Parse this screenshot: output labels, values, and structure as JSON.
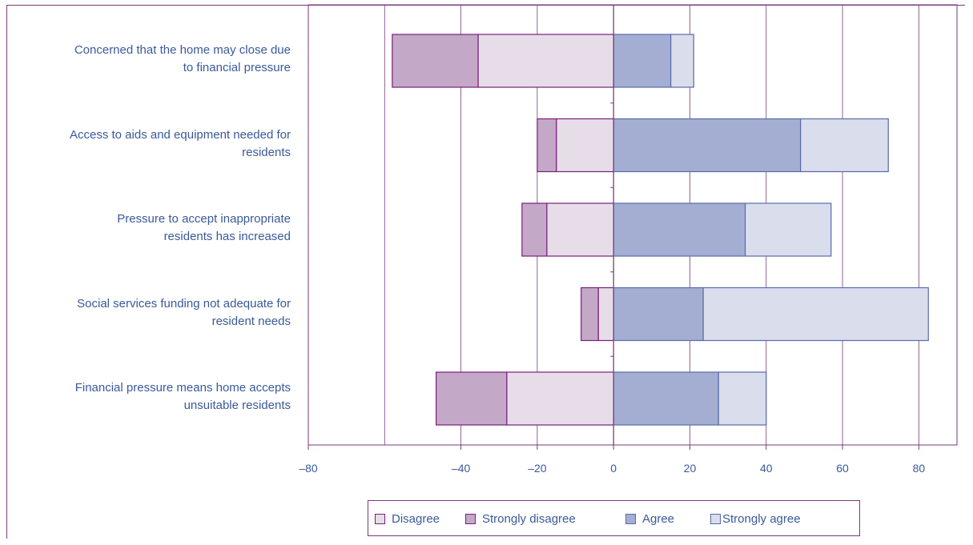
{
  "chart_data": {
    "type": "bar",
    "orientation": "horizontal",
    "stacked": "diverging",
    "categories": [
      "Concerned that the home may close due to financial pressure",
      "Access to aids and equipment needed for residents",
      "Pressure to accept inappropriate residents has increased",
      "Social services funding not adequate for resident needs",
      "Financial pressure means home accepts unsuitable residents"
    ],
    "category_lines": [
      [
        "Concerned that the home may close due",
        "to financial pressure"
      ],
      [
        "Access to aids and equipment needed for",
        "residents"
      ],
      [
        "Pressure to accept inappropriate",
        "residents has increased"
      ],
      [
        "Social services funding not adequate for",
        "resident needs"
      ],
      [
        "Financial pressure means home accepts",
        "unsuitable residents"
      ]
    ],
    "series": [
      {
        "name": "Disagree",
        "values": [
          -35.5,
          -15,
          -17.5,
          -4,
          -28
        ],
        "color": "#e6dde9",
        "stroke": "#7a1f7a"
      },
      {
        "name": "Strongly disagree",
        "values": [
          -22.5,
          -5,
          -6.5,
          -4.5,
          -18.5
        ],
        "color": "#c4a8c8",
        "stroke": "#7a1f7a"
      },
      {
        "name": "Agree",
        "values": [
          15,
          49,
          34.5,
          23.5,
          27.5
        ],
        "color": "#a4aed2",
        "stroke": "#5a6aaa"
      },
      {
        "name": "Strongly agree",
        "values": [
          6,
          23,
          22.5,
          59,
          12.5
        ],
        "color": "#d9ddec",
        "stroke": "#5a6aaa"
      }
    ],
    "xlim": [
      -80,
      90
    ],
    "xticks": [
      -80,
      -40,
      -20,
      0,
      20,
      40,
      60,
      80
    ],
    "xtick_labels": [
      "–80",
      "–40",
      "–20",
      "0",
      "20",
      "40",
      "60",
      "80"
    ],
    "gridlines_at": [
      -80,
      -60,
      -40,
      -20,
      0,
      20,
      40,
      60,
      80
    ],
    "grid": true,
    "legend_position": "bottom",
    "title": "",
    "xlabel": "",
    "ylabel": ""
  },
  "legend": {
    "items": [
      {
        "label": "Disagree",
        "color": "#e6dde9",
        "stroke": "#7a1f7a"
      },
      {
        "label": "Strongly disagree",
        "color": "#c4a8c8",
        "stroke": "#7a1f7a"
      },
      {
        "label": "Agree",
        "color": "#a4aed2",
        "stroke": "#5a6aaa"
      },
      {
        "label": "Strongly agree",
        "color": "#d9ddec",
        "stroke": "#5a6aaa"
      }
    ]
  },
  "colors": {
    "axis": "#7a3a7a",
    "text": "#3a5a9a"
  }
}
